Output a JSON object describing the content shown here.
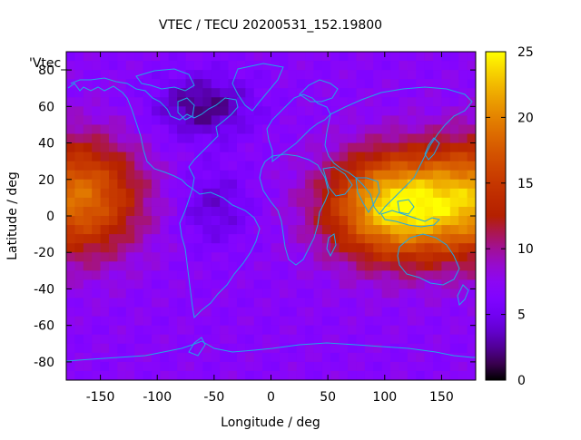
{
  "chart_data": {
    "type": "heatmap",
    "title": "VTEC / TECU 20200531_152.19800",
    "xlabel": "Longitude / deg",
    "ylabel": "Latitude / deg",
    "key_label": "'Vtec_",
    "xlim": [
      -180,
      180
    ],
    "ylim": [
      -90,
      90
    ],
    "x_ticks": [
      -150,
      -100,
      -50,
      0,
      50,
      100,
      150
    ],
    "y_ticks": [
      -80,
      -60,
      -40,
      -20,
      0,
      20,
      40,
      60,
      80
    ],
    "x_tick_labels": [
      "-150",
      "-100",
      "-50",
      "0",
      "50",
      "100",
      "150"
    ],
    "y_tick_labels": [
      "-80",
      "-60",
      "-40",
      "-20",
      "0",
      "20",
      "40",
      "60",
      "80"
    ],
    "colorbar": {
      "range": [
        0,
        25
      ],
      "ticks": [
        0,
        5,
        10,
        15,
        20,
        25
      ],
      "tick_labels": [
        "0",
        "5",
        "10",
        "15",
        "20",
        "25"
      ],
      "palette": "gnuplot-pm3d-black-purple-red-yellow"
    },
    "grid": false,
    "overlay": "coastlines",
    "coastline_color": "#1fa8e6",
    "features": [
      {
        "name": "dayside-pacific-maximum",
        "lon_center": -170,
        "lat_center": 10,
        "peak_vtec": 19
      },
      {
        "name": "dayside-asia-maximum",
        "lon_center": 110,
        "lat_center": 5,
        "peak_vtec": 24
      },
      {
        "name": "north-atlantic-minimum",
        "lon_center": -60,
        "lat_center": 60,
        "min_vtec": 2
      },
      {
        "name": "south-america-minimum",
        "lon_center": -50,
        "lat_center": 5,
        "min_vtec": 4
      },
      {
        "name": "background",
        "vtec": 7
      }
    ]
  }
}
